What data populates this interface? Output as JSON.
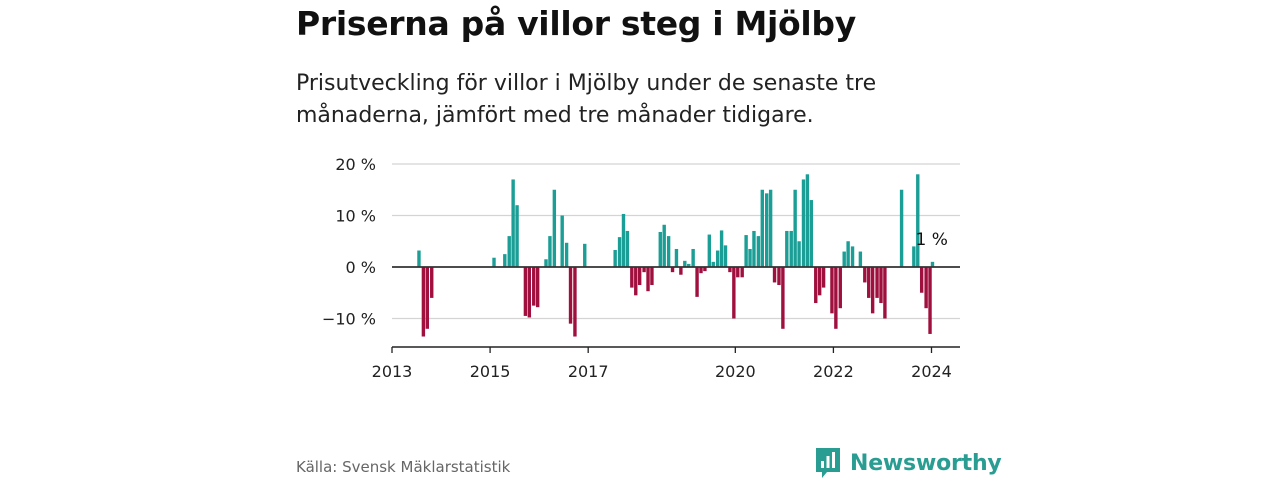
{
  "title": "Priserna på villor steg i Mjölby",
  "subtitle": "Prisutveckling för villor i Mjölby under de senaste tre månaderna, jämfört med tre månader tidigare.",
  "source": "Källa: Svensk Mäklarstatistik",
  "brand": {
    "name": "Newsworthy",
    "logo_icon": "bar-chart-icon"
  },
  "colors": {
    "positive": "#1a9e95",
    "negative": "#a0103f",
    "grid": "#d4d4d4",
    "axis": "#222222",
    "brand": "#2a9d93"
  },
  "chart_data": {
    "type": "bar",
    "title": "Priserna på villor steg i Mjölby",
    "xlabel": "",
    "ylabel": "",
    "x_range": [
      2013.0,
      2024.6
    ],
    "ylim": [
      -15,
      20
    ],
    "y_ticks": [
      {
        "value": 20,
        "label": "20 %"
      },
      {
        "value": 10,
        "label": "10 %"
      },
      {
        "value": 0,
        "label": "0 %"
      },
      {
        "value": -10,
        "label": "−10 %"
      }
    ],
    "x_ticks": [
      {
        "value": 2013,
        "label": "2013"
      },
      {
        "value": 2015,
        "label": "2015"
      },
      {
        "value": 2017,
        "label": "2017"
      },
      {
        "value": 2020,
        "label": "2020"
      },
      {
        "value": 2022,
        "label": "2022"
      },
      {
        "value": 2024,
        "label": "2024"
      }
    ],
    "annotation": {
      "x": 2024.0,
      "value": 1,
      "label": "1 %"
    },
    "bars": [
      {
        "x": 2013.55,
        "value": 3.2
      },
      {
        "x": 2013.64,
        "value": -13.5
      },
      {
        "x": 2013.72,
        "value": -12
      },
      {
        "x": 2013.81,
        "value": -6
      },
      {
        "x": 2015.08,
        "value": 1.8
      },
      {
        "x": 2015.3,
        "value": 2.5
      },
      {
        "x": 2015.39,
        "value": 6
      },
      {
        "x": 2015.47,
        "value": 17
      },
      {
        "x": 2015.55,
        "value": 12
      },
      {
        "x": 2015.72,
        "value": -9.5
      },
      {
        "x": 2015.8,
        "value": -9.8
      },
      {
        "x": 2015.89,
        "value": -7.5
      },
      {
        "x": 2015.97,
        "value": -7.8
      },
      {
        "x": 2016.14,
        "value": 1.5
      },
      {
        "x": 2016.22,
        "value": 6
      },
      {
        "x": 2016.31,
        "value": 15
      },
      {
        "x": 2016.47,
        "value": 10
      },
      {
        "x": 2016.56,
        "value": 4.7
      },
      {
        "x": 2016.64,
        "value": -11
      },
      {
        "x": 2016.73,
        "value": -13.5
      },
      {
        "x": 2016.93,
        "value": 4.5
      },
      {
        "x": 2017.55,
        "value": 3.3
      },
      {
        "x": 2017.64,
        "value": 5.8
      },
      {
        "x": 2017.72,
        "value": 10.3
      },
      {
        "x": 2017.8,
        "value": 7
      },
      {
        "x": 2017.89,
        "value": -4
      },
      {
        "x": 2017.97,
        "value": -5.5
      },
      {
        "x": 2018.05,
        "value": -3.5
      },
      {
        "x": 2018.14,
        "value": -1
      },
      {
        "x": 2018.22,
        "value": -4.7
      },
      {
        "x": 2018.3,
        "value": -3.5
      },
      {
        "x": 2018.47,
        "value": 6.8
      },
      {
        "x": 2018.55,
        "value": 8.2
      },
      {
        "x": 2018.64,
        "value": 6
      },
      {
        "x": 2018.72,
        "value": -1
      },
      {
        "x": 2018.8,
        "value": 3.5
      },
      {
        "x": 2018.89,
        "value": -1.5
      },
      {
        "x": 2018.97,
        "value": 1.2
      },
      {
        "x": 2019.05,
        "value": 0.6
      },
      {
        "x": 2019.14,
        "value": 3.5
      },
      {
        "x": 2019.22,
        "value": -5.8
      },
      {
        "x": 2019.3,
        "value": -1.2
      },
      {
        "x": 2019.38,
        "value": -0.8
      },
      {
        "x": 2019.47,
        "value": 6.3
      },
      {
        "x": 2019.55,
        "value": 1
      },
      {
        "x": 2019.64,
        "value": 3.2
      },
      {
        "x": 2019.72,
        "value": 7.1
      },
      {
        "x": 2019.8,
        "value": 4.2
      },
      {
        "x": 2019.89,
        "value": -1
      },
      {
        "x": 2019.97,
        "value": -10
      },
      {
        "x": 2020.05,
        "value": -2
      },
      {
        "x": 2020.14,
        "value": -2
      },
      {
        "x": 2020.22,
        "value": 6.2
      },
      {
        "x": 2020.3,
        "value": 3.5
      },
      {
        "x": 2020.38,
        "value": 7
      },
      {
        "x": 2020.47,
        "value": 6
      },
      {
        "x": 2020.55,
        "value": 15
      },
      {
        "x": 2020.64,
        "value": 14.3
      },
      {
        "x": 2020.72,
        "value": 15
      },
      {
        "x": 2020.8,
        "value": -3
      },
      {
        "x": 2020.89,
        "value": -3.5
      },
      {
        "x": 2020.97,
        "value": -12
      },
      {
        "x": 2021.05,
        "value": 7
      },
      {
        "x": 2021.14,
        "value": 7
      },
      {
        "x": 2021.22,
        "value": 15
      },
      {
        "x": 2021.3,
        "value": 5
      },
      {
        "x": 2021.39,
        "value": 17
      },
      {
        "x": 2021.47,
        "value": 18
      },
      {
        "x": 2021.55,
        "value": 13
      },
      {
        "x": 2021.64,
        "value": -7
      },
      {
        "x": 2021.72,
        "value": -5.5
      },
      {
        "x": 2021.8,
        "value": -4
      },
      {
        "x": 2021.97,
        "value": -9
      },
      {
        "x": 2022.05,
        "value": -12
      },
      {
        "x": 2022.14,
        "value": -8
      },
      {
        "x": 2022.22,
        "value": 3
      },
      {
        "x": 2022.3,
        "value": 5
      },
      {
        "x": 2022.39,
        "value": 4
      },
      {
        "x": 2022.55,
        "value": 3
      },
      {
        "x": 2022.64,
        "value": -3
      },
      {
        "x": 2022.72,
        "value": -6
      },
      {
        "x": 2022.8,
        "value": -9
      },
      {
        "x": 2022.89,
        "value": -6
      },
      {
        "x": 2022.97,
        "value": -7
      },
      {
        "x": 2023.05,
        "value": -10
      },
      {
        "x": 2023.39,
        "value": 15
      },
      {
        "x": 2023.64,
        "value": 4
      },
      {
        "x": 2023.72,
        "value": 18
      },
      {
        "x": 2023.8,
        "value": -5
      },
      {
        "x": 2023.89,
        "value": -8
      },
      {
        "x": 2023.97,
        "value": -13
      },
      {
        "x": 2024.02,
        "value": 1
      }
    ]
  }
}
